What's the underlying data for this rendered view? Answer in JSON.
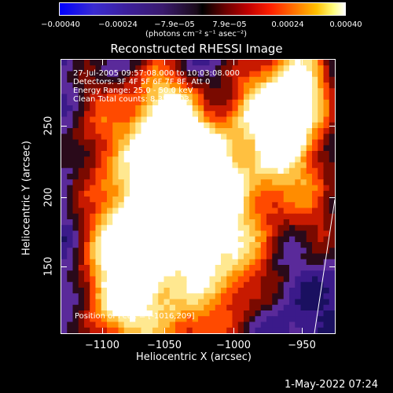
{
  "colorbar": {
    "ticks": [
      "−0.00040",
      "−0.00024",
      "−7.9e−05",
      "7.9e−05",
      "0.00024",
      "0.00040"
    ],
    "units": "(photons cm⁻² s⁻¹ asec⁻²)"
  },
  "title": "Reconstructed RHESSI Image",
  "info": {
    "time": "27-Jul-2005 09:57:08.000 to 10:03:08.000",
    "detectors": "Detectors: 3F 4F 5F 6F 7F 8F, Att 0",
    "energy": "Energy Range: 25.0 - 50.0 keV",
    "clean": "Clean    Total counts: 8.35E+03",
    "peak": "Position of Peak = [-1016,209]"
  },
  "axes": {
    "xlabel": "Heliocentric X (arcsec)",
    "ylabel": "Heliocentric Y (arcsec)",
    "xticks": [
      "−1100",
      "−1050",
      "−1000",
      "−950"
    ],
    "yticks": [
      "250",
      "200",
      "150"
    ],
    "xrange": [
      -1118,
      -925
    ],
    "yrange": [
      98,
      290
    ]
  },
  "timestamp": "1-May-2022 07:24",
  "colors": {
    "background": "#000000",
    "text": "#ffffff"
  }
}
